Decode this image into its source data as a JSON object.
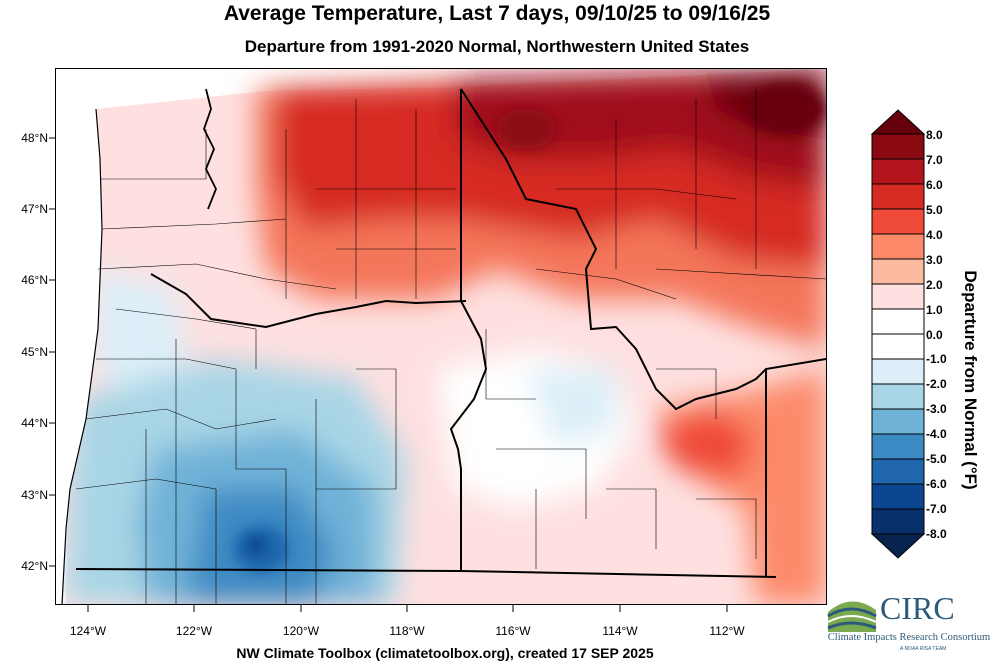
{
  "title": "Average Temperature, Last 7 days, 09/10/25 to 09/16/25",
  "subtitle": "Departure from 1991-2020 Normal, Northwestern United States",
  "footer": "NW Climate Toolbox (climatetoolbox.org), created 17 SEP 2025",
  "lat_labels": [
    "48°N",
    "47°N",
    "46°N",
    "45°N",
    "44°N",
    "43°N",
    "42°N"
  ],
  "lon_labels": [
    "124°W",
    "122°W",
    "120°W",
    "118°W",
    "116°W",
    "114°W",
    "112°W"
  ],
  "colorbar": {
    "title": "Departure from Normal (°F)",
    "labels": [
      "8.0",
      "7.0",
      "6.0",
      "5.0",
      "4.0",
      "3.0",
      "2.0",
      "1.0",
      "0.0",
      "-1.0",
      "-2.0",
      "-3.0",
      "-4.0",
      "-5.0",
      "-6.0",
      "-7.0",
      "-8.0"
    ],
    "colors": [
      "#67000d",
      "#8b0a12",
      "#b3141b",
      "#d62b22",
      "#ef4a37",
      "#fc8a6a",
      "#fcbba1",
      "#fee0e0",
      "#ffffff",
      "#ffffff",
      "#dceff8",
      "#a9d6e6",
      "#6fb2d8",
      "#3c8ac3",
      "#1f66ad",
      "#0d4690",
      "#08306b",
      "#08234f"
    ]
  },
  "logo": {
    "name": "CIRC",
    "full_name": "Climate Impacts Research Consortium",
    "tagline": "A NOAA RISA TEAM"
  }
}
